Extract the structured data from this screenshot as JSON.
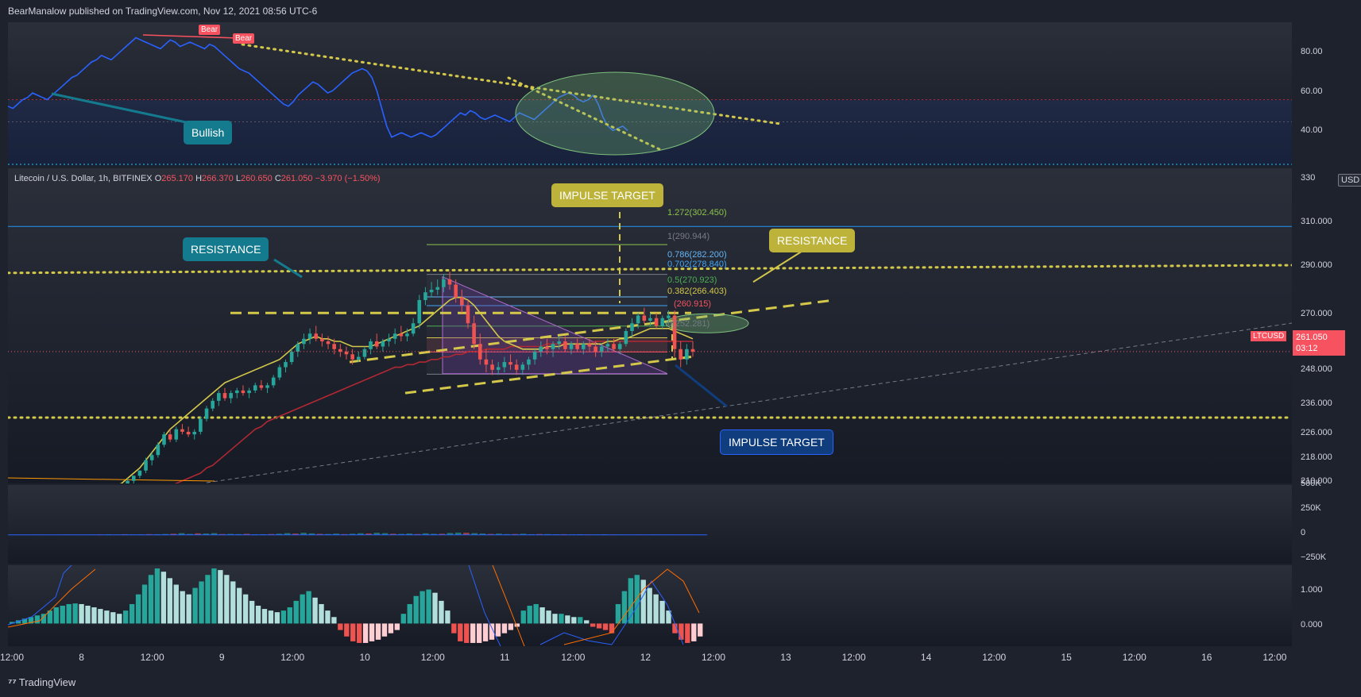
{
  "header": {
    "published_text": "BearManalow published on TradingView.com, Nov 12, 2021 08:56 UTC-6"
  },
  "footer": {
    "brand_icon": "tradingview-logo-icon",
    "brand": "TradingView"
  },
  "colors": {
    "bg": "#1e222d",
    "up": "#26a69a",
    "down": "#ef5350",
    "yellow": "#d4c84a",
    "rsi": "#2962ff",
    "ma_red": "#b22833",
    "ma_blue": "#1a1fbf",
    "callout_teal": "#147b8e",
    "callout_yellow": "#bdb33a",
    "callout_navy": "#0f3d7d"
  },
  "legend": {
    "symbol": "Litecoin / U.S. Dollar, 1h, BITFINEX",
    "o_label": "O",
    "o": "265.170",
    "h_label": "H",
    "h": "266.370",
    "l_label": "L",
    "l": "260.650",
    "c_label": "C",
    "c": "261.050",
    "change": "−3.970 (−1.50%)"
  },
  "badges": {
    "ticker": "LTCUSD",
    "last_price": "261.050",
    "countdown": "03:12",
    "currency": "USD"
  },
  "annotations": {
    "bullish": "Bullish",
    "bear1": "Bear",
    "bear2": "Bear",
    "resistance_left": "RESISTANCE",
    "resistance_right": "RESISTANCE",
    "impulse_top": "IMPULSE TARGET",
    "impulse_bottom": "IMPULSE TARGET"
  },
  "fib_levels": [
    {
      "ratio": "1.272",
      "price": "302.450",
      "text": "1.272(302.450)",
      "color": "#8bc34a"
    },
    {
      "ratio": "1",
      "price": "290.944",
      "text": "1(290.944)",
      "color": "#787b86"
    },
    {
      "ratio": "0.786",
      "price": "282.200",
      "text": "0.786(282.200)",
      "color": "#64b5f6"
    },
    {
      "ratio": "0.702",
      "price": "278.840",
      "text": "0.702(278.840)",
      "color": "#42a5f5"
    },
    {
      "ratio": "0.5",
      "price": "270.923",
      "text": "0.5(270.923)",
      "color": "#4caf50"
    },
    {
      "ratio": "0.382",
      "price": "266.403",
      "text": "0.382(266.403)",
      "color": "#d4c84a"
    },
    {
      "ratio": "0.236",
      "price": "260.915",
      "text": "(260.915)",
      "color": "#f7525f"
    },
    {
      "ratio": "0",
      "price": "252.281",
      "text": "0(252.281)",
      "color": "#787b86"
    }
  ],
  "chart_data": [
    {
      "type": "line",
      "name": "rsi",
      "yticks": [
        "80.00",
        "60.00",
        "40.00"
      ],
      "ylim": [
        30,
        95
      ],
      "bands": [
        60,
        50,
        30
      ],
      "values": [
        57,
        56,
        58,
        60,
        61,
        63,
        62,
        61,
        60,
        62,
        64,
        66,
        68,
        70,
        71,
        73,
        75,
        77,
        78,
        80,
        79,
        78,
        80,
        82,
        84,
        86,
        88,
        87,
        86,
        85,
        84,
        83,
        85,
        87,
        86,
        84,
        85,
        86,
        85,
        84,
        83,
        85,
        84,
        82,
        80,
        78,
        76,
        74,
        73,
        72,
        70,
        68,
        66,
        64,
        62,
        60,
        58,
        57,
        59,
        62,
        64,
        66,
        68,
        67,
        65,
        63,
        64,
        66,
        68,
        70,
        72,
        73,
        74,
        73,
        70,
        64,
        56,
        48,
        43,
        44,
        45,
        44,
        43,
        44,
        45,
        44,
        43,
        44,
        46,
        48,
        50,
        52,
        54,
        53,
        55,
        54,
        52,
        51,
        52,
        53,
        52,
        51,
        50,
        52,
        54,
        53,
        52,
        51,
        53,
        55,
        57,
        59,
        61,
        62,
        63,
        62,
        60,
        59,
        60,
        62,
        58,
        52,
        48,
        46,
        47,
        48,
        46
      ]
    },
    {
      "type": "candlestick",
      "name": "price",
      "yticks": [
        "330",
        "310.000",
        "290.000",
        "270.000",
        "248.000",
        "236.000",
        "226.000",
        "218.000",
        "210.000"
      ],
      "ylim": [
        210,
        332
      ],
      "x": [
        "12:00",
        "8",
        "12:00",
        "9",
        "12:00",
        "10",
        "12:00",
        "11",
        "12:00",
        "12",
        "12:00",
        "13",
        "12:00",
        "14",
        "12:00",
        "15",
        "12:00",
        "16",
        "12:00"
      ],
      "candles": [
        [
          206,
          207,
          205,
          207
        ],
        [
          207,
          208,
          206,
          208
        ],
        [
          208,
          209,
          207,
          209
        ],
        [
          209,
          210,
          208,
          210
        ],
        [
          210,
          212,
          209,
          211
        ],
        [
          211,
          213,
          210,
          213
        ],
        [
          213,
          215,
          212,
          215
        ],
        [
          215,
          220,
          214,
          219
        ],
        [
          219,
          222,
          217,
          221
        ],
        [
          221,
          226,
          220,
          225
        ],
        [
          225,
          230,
          224,
          229
        ],
        [
          229,
          231,
          226,
          227
        ],
        [
          227,
          232,
          226,
          231
        ],
        [
          231,
          233,
          229,
          230
        ],
        [
          230,
          232,
          228,
          229
        ],
        [
          229,
          231,
          227,
          230
        ],
        [
          230,
          236,
          229,
          235
        ],
        [
          235,
          240,
          234,
          239
        ],
        [
          239,
          243,
          238,
          242
        ],
        [
          242,
          246,
          240,
          245
        ],
        [
          245,
          247,
          242,
          243
        ],
        [
          243,
          246,
          241,
          245
        ],
        [
          245,
          247,
          243,
          246
        ],
        [
          246,
          248,
          244,
          245
        ],
        [
          245,
          247,
          243,
          246
        ],
        [
          246,
          249,
          245,
          248
        ],
        [
          248,
          250,
          246,
          247
        ],
        [
          247,
          249,
          245,
          248
        ],
        [
          248,
          252,
          247,
          251
        ],
        [
          251,
          256,
          250,
          255
        ],
        [
          255,
          258,
          253,
          257
        ],
        [
          257,
          262,
          256,
          261
        ],
        [
          261,
          265,
          259,
          264
        ],
        [
          264,
          268,
          262,
          266
        ],
        [
          266,
          270,
          264,
          268
        ],
        [
          268,
          271,
          265,
          266
        ],
        [
          266,
          268,
          263,
          265
        ],
        [
          265,
          267,
          262,
          264
        ],
        [
          264,
          266,
          260,
          262
        ],
        [
          262,
          264,
          259,
          261
        ],
        [
          261,
          263,
          258,
          260
        ],
        [
          260,
          262,
          256,
          258
        ],
        [
          258,
          261,
          257,
          259
        ],
        [
          259,
          263,
          258,
          262
        ],
        [
          262,
          266,
          260,
          265
        ],
        [
          265,
          268,
          262,
          263
        ],
        [
          263,
          266,
          261,
          265
        ],
        [
          265,
          268,
          263,
          266
        ],
        [
          266,
          270,
          264,
          268
        ],
        [
          268,
          271,
          265,
          267
        ],
        [
          267,
          270,
          265,
          268
        ],
        [
          268,
          274,
          267,
          272
        ],
        [
          272,
          283,
          270,
          281
        ],
        [
          281,
          286,
          279,
          284
        ],
        [
          284,
          288,
          282,
          285
        ],
        [
          285,
          289,
          283,
          286
        ],
        [
          286,
          291,
          284,
          289
        ],
        [
          289,
          292,
          285,
          287
        ],
        [
          287,
          289,
          280,
          282
        ],
        [
          282,
          285,
          276,
          279
        ],
        [
          279,
          281,
          270,
          272
        ],
        [
          272,
          275,
          262,
          264
        ],
        [
          264,
          268,
          256,
          258
        ],
        [
          258,
          262,
          253,
          256
        ],
        [
          256,
          258,
          252,
          254
        ],
        [
          254,
          257,
          252,
          255
        ],
        [
          255,
          259,
          253,
          257
        ],
        [
          257,
          260,
          254,
          256
        ],
        [
          256,
          258,
          252,
          254
        ],
        [
          254,
          257,
          252,
          256
        ],
        [
          256,
          259,
          254,
          258
        ],
        [
          258,
          262,
          256,
          261
        ],
        [
          261,
          265,
          259,
          263
        ],
        [
          263,
          266,
          260,
          262
        ],
        [
          262,
          265,
          259,
          264
        ],
        [
          264,
          267,
          262,
          265
        ],
        [
          265,
          267,
          261,
          262
        ],
        [
          262,
          265,
          260,
          264
        ],
        [
          264,
          266,
          261,
          262
        ],
        [
          262,
          265,
          260,
          264
        ],
        [
          264,
          266,
          261,
          263
        ],
        [
          263,
          265,
          259,
          261
        ],
        [
          261,
          264,
          259,
          263
        ],
        [
          263,
          266,
          261,
          264
        ],
        [
          264,
          266,
          261,
          262
        ],
        [
          262,
          265,
          260,
          264
        ],
        [
          264,
          270,
          263,
          269
        ],
        [
          269,
          274,
          267,
          272
        ],
        [
          272,
          276,
          270,
          275
        ],
        [
          275,
          278,
          272,
          273
        ],
        [
          273,
          276,
          271,
          274
        ],
        [
          274,
          276,
          270,
          271
        ],
        [
          271,
          275,
          270,
          274
        ],
        [
          274,
          277,
          272,
          275
        ],
        [
          275,
          277,
          259,
          262
        ],
        [
          262,
          265,
          255,
          258
        ],
        [
          258,
          264,
          256,
          262
        ],
        [
          262,
          265,
          259,
          261
        ]
      ],
      "ema_fast": [
        207,
        208,
        209,
        210,
        212,
        214,
        216,
        219,
        222,
        225,
        228,
        231,
        233,
        235,
        237,
        239,
        241,
        243,
        245,
        247,
        249,
        250,
        251,
        252,
        253,
        254,
        255,
        256,
        257,
        258,
        260,
        262,
        264,
        265,
        266,
        267,
        266,
        266,
        265,
        265,
        264,
        263,
        263,
        263,
        263,
        264,
        265,
        266,
        267,
        268,
        269,
        270,
        271,
        273,
        275,
        277,
        279,
        281,
        282,
        282,
        281,
        279,
        276,
        273,
        270,
        267,
        265,
        264,
        263,
        262,
        262,
        262,
        262,
        263,
        263,
        263,
        264,
        264,
        264,
        264,
        264,
        264,
        264,
        265,
        265,
        266,
        266,
        267,
        268,
        269,
        270,
        270,
        270,
        270,
        269,
        268,
        267,
        266
      ],
      "ma_slow_red": [
        201,
        201,
        202,
        202,
        203,
        203,
        204,
        205,
        206,
        207,
        208,
        209,
        210,
        211,
        212,
        213,
        214,
        216,
        217,
        219,
        221,
        223,
        225,
        227,
        229,
        231,
        232,
        234,
        235,
        236,
        237,
        238,
        239,
        240,
        241,
        242,
        243,
        244,
        245,
        246,
        247,
        248,
        249,
        250,
        251,
        252,
        253,
        254,
        255,
        255,
        256,
        256,
        257,
        257,
        258,
        258,
        259,
        259,
        260,
        260,
        261,
        261,
        261,
        262,
        262,
        262,
        262,
        263,
        263,
        263,
        263,
        263,
        263,
        264,
        264,
        264,
        264,
        264,
        264,
        264,
        264,
        265,
        265,
        265,
        265,
        265,
        265,
        265,
        265,
        265,
        265,
        265,
        265,
        265,
        265,
        265,
        265,
        265
      ],
      "ma_blue": [
        [
          330,
          609
        ],
        [
          430,
          585
        ],
        [
          530,
          560
        ],
        [
          640,
          540
        ],
        [
          760,
          523
        ],
        [
          860,
          511
        ],
        [
          880,
          508
        ]
      ],
      "horizontal_levels": [
        {
          "price": 309.5,
          "style": "solid",
          "color": "#2196f3"
        },
        {
          "price": 235.5,
          "style": "dotted",
          "color": "#d4c84a"
        }
      ]
    },
    {
      "type": "bar",
      "name": "volume",
      "yticks": [
        "500K",
        "250K",
        "0",
        "−250K"
      ],
      "ylim": [
        -300000,
        520000
      ],
      "values": [
        2,
        2,
        3,
        3,
        2,
        3,
        4,
        3,
        3,
        4,
        5,
        6,
        4,
        7,
        5,
        6,
        8,
        7,
        9,
        12,
        18,
        10,
        16,
        14,
        18,
        9,
        10,
        8,
        11,
        6,
        7,
        9,
        12,
        18,
        14,
        22,
        16,
        11,
        9,
        13,
        8,
        12,
        17,
        15,
        22,
        18,
        12,
        10,
        14,
        9,
        16,
        11,
        12,
        20,
        24,
        22,
        18,
        14,
        10,
        13,
        8,
        9,
        12,
        7,
        9,
        8,
        6,
        7,
        5,
        6,
        5,
        4,
        6,
        5,
        4,
        3,
        4,
        3,
        4,
        3,
        3,
        2,
        3,
        2
      ]
    },
    {
      "type": "bar",
      "name": "oscillator",
      "yticks": [
        "1.000",
        "0.000"
      ],
      "ylim": [
        -0.7,
        1.8
      ],
      "values": [
        0.05,
        0.1,
        0.15,
        0.2,
        0.25,
        0.3,
        0.4,
        0.5,
        0.55,
        0.6,
        0.62,
        0.6,
        0.55,
        0.5,
        0.45,
        0.4,
        0.35,
        0.3,
        0.4,
        0.6,
        0.9,
        1.2,
        1.5,
        1.7,
        1.6,
        1.4,
        1.2,
        1.0,
        0.9,
        1.1,
        1.3,
        1.5,
        1.7,
        1.65,
        1.5,
        1.3,
        1.1,
        0.9,
        0.7,
        0.55,
        0.45,
        0.4,
        0.35,
        0.4,
        0.5,
        0.7,
        0.9,
        1.0,
        0.8,
        0.6,
        0.4,
        0.2,
        -0.2,
        -0.4,
        -0.55,
        -0.6,
        -0.6,
        -0.55,
        -0.5,
        -0.4,
        -0.3,
        -0.2,
        0.3,
        0.6,
        0.85,
        1.0,
        1.05,
        0.95,
        0.7,
        0.4,
        -0.3,
        -0.55,
        -0.6,
        -0.6,
        -0.6,
        -0.55,
        -0.5,
        -0.4,
        -0.3,
        -0.2,
        -0.1,
        0.4,
        0.55,
        0.6,
        0.5,
        0.4,
        0.3,
        0.3,
        0.25,
        0.2,
        0.2,
        0.1,
        -0.1,
        -0.15,
        -0.2,
        -0.3,
        0.6,
        1.0,
        1.4,
        1.5,
        1.35,
        1.1,
        0.9,
        0.7,
        0.4,
        -0.3,
        -0.5,
        -0.6,
        -0.55,
        -0.4
      ]
    }
  ]
}
